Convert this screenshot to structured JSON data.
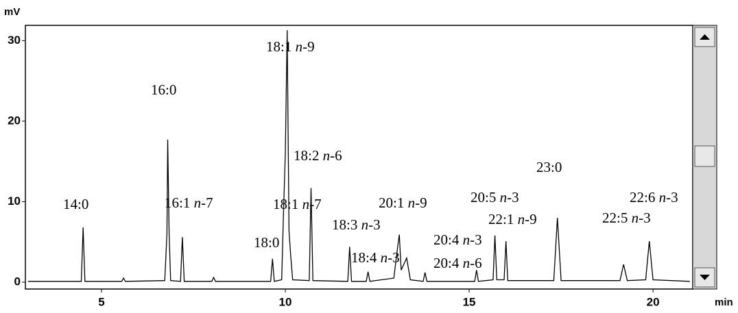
{
  "chart_data": {
    "type": "line",
    "y_label": "mV",
    "x_label": "min",
    "xlim": [
      2.93,
      21.08
    ],
    "xticks": [
      5,
      10,
      15,
      20
    ],
    "ylim": [
      -0.85,
      31.9
    ],
    "yticks": [
      0,
      10,
      20,
      30
    ],
    "series": [
      {
        "color": "#000000",
        "x": [
          3.0,
          4.45,
          4.5,
          4.55,
          5.55,
          5.6,
          5.65,
          6.72,
          6.78,
          6.8,
          6.84,
          6.88,
          7.15,
          7.2,
          7.25,
          8.0,
          8.05,
          8.1,
          9.6,
          9.65,
          9.7,
          9.9,
          9.95,
          10.0,
          10.05,
          10.1,
          10.15,
          10.2,
          10.65,
          10.7,
          10.75,
          11.7,
          11.75,
          11.8,
          12.2,
          12.25,
          12.3,
          12.95,
          13.05,
          13.1,
          13.15,
          13.3,
          13.4,
          13.75,
          13.8,
          13.85,
          15.15,
          15.2,
          15.25,
          15.65,
          15.7,
          15.75,
          15.95,
          16.0,
          16.05,
          17.3,
          17.4,
          17.5,
          19.1,
          19.2,
          19.3,
          19.8,
          19.9,
          20.0,
          21.0
        ],
        "values": [
          0.1,
          0.1,
          6.8,
          0.1,
          0.1,
          0.5,
          0.1,
          0.2,
          6,
          17.7,
          6,
          0.2,
          0.1,
          5.6,
          0.1,
          0.1,
          0.6,
          0.1,
          0.1,
          2.9,
          0.1,
          0.3,
          8.5,
          16,
          31.3,
          6.3,
          3,
          0.3,
          0.2,
          11.7,
          0.2,
          0.1,
          4.4,
          0.1,
          0.1,
          1.3,
          0.1,
          0.5,
          4.2,
          5.9,
          1.5,
          3,
          0.3,
          0.1,
          1.2,
          0.1,
          0.1,
          1.5,
          0.1,
          0.3,
          5.8,
          0.3,
          0.3,
          5.1,
          0.2,
          0.2,
          8.0,
          0.2,
          0.2,
          2.2,
          0.2,
          0.3,
          5.1,
          0.3,
          0.1
        ]
      }
    ],
    "annotations": [
      "14:0",
      "16:0",
      "16:1 n-7",
      "18:1 n-9",
      "18:2 n-6",
      "18:1 n-7",
      "18:0",
      "18:3 n-3",
      "18:4 n-3",
      "20:1 n-9",
      "20:4 n-3",
      "20:4 n-6",
      "20:5 n-3",
      "22:1 n-9",
      "23:0",
      "22:5 n-3",
      "22:6 n-3"
    ]
  }
}
